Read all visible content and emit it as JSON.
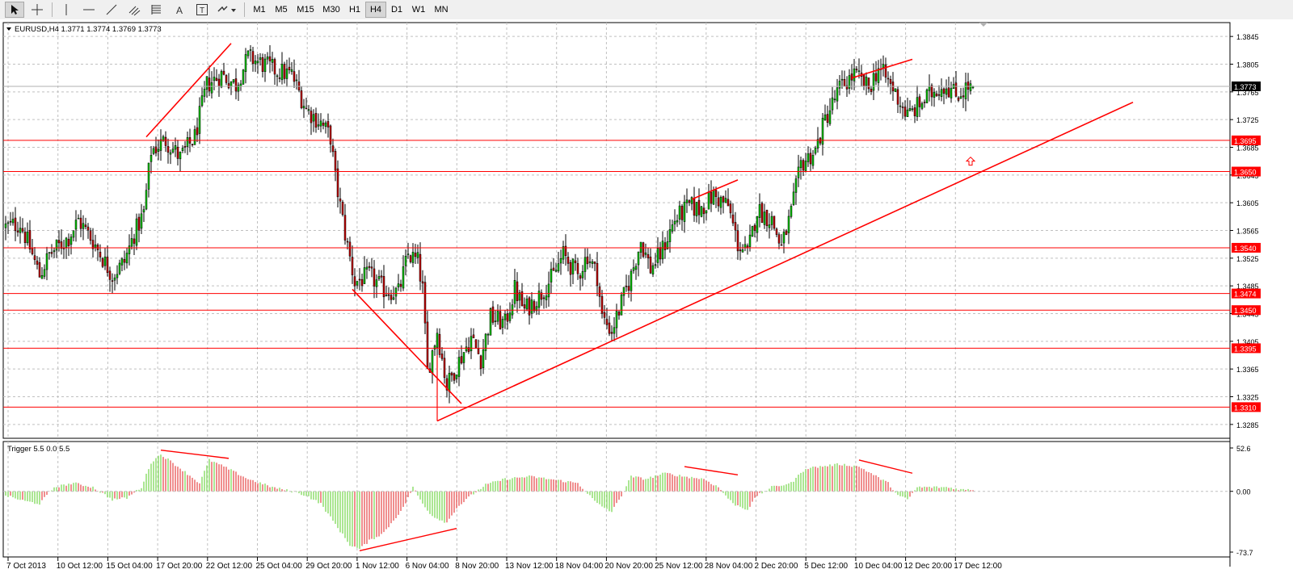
{
  "toolbar": {
    "tools": [
      {
        "name": "cursor-icon",
        "active": true
      },
      {
        "name": "crosshair-icon",
        "active": false
      },
      {
        "name": "vertical-line-icon",
        "active": false
      },
      {
        "name": "horizontal-line-icon",
        "active": false
      },
      {
        "name": "trendline-icon",
        "active": false
      },
      {
        "name": "fibonacci-channel-icon",
        "active": false
      },
      {
        "name": "fibonacci-fan-icon",
        "active": false
      },
      {
        "name": "text-icon",
        "active": false
      },
      {
        "name": "text-label-icon",
        "active": false
      },
      {
        "name": "arrows-icon",
        "active": false
      }
    ],
    "text_tool_label": "A",
    "text_label_tool_label": "T",
    "timeframes": [
      "M1",
      "M5",
      "M15",
      "M30",
      "H1",
      "H4",
      "D1",
      "W1",
      "MN"
    ],
    "active_timeframe": "H4"
  },
  "main_window": {
    "title": "EURUSD,H4  1.3771 1.3774 1.3769 1.3773"
  },
  "indicator_window": {
    "title": "Trigger 5.5 0.0 5.5"
  },
  "colors": {
    "levels": "#ff0000",
    "bull_bar": "#00c800",
    "bear_bar": "#c80000",
    "hist_pos_rising": "#7ed957",
    "hist_pos_falling": "#e85050",
    "current_price_box": "#000000",
    "grid": "#c0c0c0"
  },
  "chart_data": [
    {
      "type": "candlestick",
      "symbol": "EURUSD",
      "timeframe": "H4",
      "last_bar": {
        "open": 1.3771,
        "high": 1.3774,
        "low": 1.3769,
        "close": 1.3773
      },
      "current_price": "1.3773",
      "ylim": [
        1.3265,
        1.3865
      ],
      "y_ticks": [
        "1.3845",
        "1.3805",
        "1.3765",
        "1.3725",
        "1.3685",
        "1.3645",
        "1.3605",
        "1.3565",
        "1.3525",
        "1.3485",
        "1.3445",
        "1.3405",
        "1.3365",
        "1.3325",
        "1.3285"
      ],
      "horizontal_levels": [
        "1.3695",
        "1.3650",
        "1.3540",
        "1.3474",
        "1.3450",
        "1.3395",
        "1.3310"
      ],
      "x_ticks": [
        "7 Oct 2013",
        "10 Oct 12:00",
        "15 Oct 04:00",
        "17 Oct 20:00",
        "22 Oct 12:00",
        "25 Oct 04:00",
        "29 Oct 20:00",
        "1 Nov 12:00",
        "6 Nov 04:00",
        "8 Nov 20:00",
        "13 Nov 12:00",
        "18 Nov 04:00",
        "20 Nov 20:00",
        "25 Nov 12:00",
        "28 Nov 04:00",
        "2 Dec 20:00",
        "5 Dec 12:00",
        "10 Dec 04:00",
        "12 Dec 20:00",
        "17 Dec 12:00"
      ],
      "bar_count": 400,
      "path_points": [
        [
          0,
          1.357
        ],
        [
          6,
          1.3575
        ],
        [
          10,
          1.354
        ],
        [
          14,
          1.35
        ],
        [
          18,
          1.353
        ],
        [
          26,
          1.3555
        ],
        [
          30,
          1.358
        ],
        [
          36,
          1.355
        ],
        [
          44,
          1.35
        ],
        [
          49,
          1.352
        ],
        [
          53,
          1.356
        ],
        [
          57,
          1.359
        ],
        [
          60,
          1.368
        ],
        [
          66,
          1.3695
        ],
        [
          72,
          1.367
        ],
        [
          78,
          1.37
        ],
        [
          83,
          1.3775
        ],
        [
          89,
          1.379
        ],
        [
          95,
          1.3775
        ],
        [
          100,
          1.3815
        ],
        [
          106,
          1.3805
        ],
        [
          112,
          1.3795
        ],
        [
          118,
          1.379
        ],
        [
          124,
          1.374
        ],
        [
          130,
          1.372
        ],
        [
          134,
          1.37
        ],
        [
          136,
          1.364
        ],
        [
          140,
          1.356
        ],
        [
          144,
          1.349
        ],
        [
          150,
          1.35
        ],
        [
          156,
          1.348
        ],
        [
          162,
          1.3475
        ],
        [
          166,
          1.353
        ],
        [
          170,
          1.352
        ],
        [
          172,
          1.348
        ],
        [
          174,
          1.336
        ],
        [
          178,
          1.342
        ],
        [
          182,
          1.334
        ],
        [
          186,
          1.337
        ],
        [
          192,
          1.341
        ],
        [
          196,
          1.338
        ],
        [
          200,
          1.344
        ],
        [
          206,
          1.343
        ],
        [
          210,
          1.348
        ],
        [
          214,
          1.345
        ],
        [
          220,
          1.347
        ],
        [
          226,
          1.35
        ],
        [
          230,
          1.353
        ],
        [
          236,
          1.35
        ],
        [
          240,
          1.353
        ],
        [
          244,
          1.35
        ],
        [
          246,
          1.344
        ],
        [
          250,
          1.342
        ],
        [
          254,
          1.346
        ],
        [
          258,
          1.35
        ],
        [
          262,
          1.355
        ],
        [
          266,
          1.351
        ],
        [
          270,
          1.353
        ],
        [
          276,
          1.358
        ],
        [
          282,
          1.36
        ],
        [
          286,
          1.3595
        ],
        [
          292,
          1.3615
        ],
        [
          298,
          1.36
        ],
        [
          302,
          1.3545
        ],
        [
          306,
          1.353
        ],
        [
          310,
          1.3595
        ],
        [
          316,
          1.358
        ],
        [
          320,
          1.354
        ],
        [
          324,
          1.359
        ],
        [
          328,
          1.366
        ],
        [
          334,
          1.368
        ],
        [
          338,
          1.3725
        ],
        [
          344,
          1.377
        ],
        [
          350,
          1.379
        ],
        [
          356,
          1.377
        ],
        [
          360,
          1.38
        ],
        [
          366,
          1.377
        ],
        [
          372,
          1.373
        ],
        [
          378,
          1.375
        ],
        [
          384,
          1.377
        ],
        [
          388,
          1.3775
        ],
        [
          392,
          1.376
        ],
        [
          396,
          1.377
        ],
        [
          399,
          1.3773
        ]
      ]
    },
    {
      "type": "histogram",
      "name": "Trigger 5.5 0.0 5.5",
      "ylim": [
        -73.7,
        52.6
      ],
      "y_ticks": [
        "52.6",
        "0.00",
        "-73.7"
      ],
      "path_points": [
        [
          0,
          -5
        ],
        [
          8,
          -12
        ],
        [
          14,
          -15
        ],
        [
          20,
          5
        ],
        [
          28,
          10
        ],
        [
          36,
          5
        ],
        [
          44,
          -10
        ],
        [
          50,
          -8
        ],
        [
          56,
          5
        ],
        [
          60,
          35
        ],
        [
          64,
          45
        ],
        [
          72,
          28
        ],
        [
          80,
          10
        ],
        [
          84,
          38
        ],
        [
          90,
          30
        ],
        [
          100,
          15
        ],
        [
          110,
          5
        ],
        [
          118,
          0
        ],
        [
          124,
          -5
        ],
        [
          130,
          -15
        ],
        [
          136,
          -40
        ],
        [
          142,
          -65
        ],
        [
          146,
          -70
        ],
        [
          150,
          -60
        ],
        [
          156,
          -50
        ],
        [
          164,
          -20
        ],
        [
          168,
          5
        ],
        [
          172,
          -15
        ],
        [
          176,
          -30
        ],
        [
          182,
          -38
        ],
        [
          186,
          -20
        ],
        [
          192,
          -5
        ],
        [
          198,
          8
        ],
        [
          206,
          15
        ],
        [
          216,
          18
        ],
        [
          224,
          15
        ],
        [
          236,
          10
        ],
        [
          244,
          -15
        ],
        [
          250,
          -25
        ],
        [
          254,
          -5
        ],
        [
          258,
          18
        ],
        [
          264,
          15
        ],
        [
          272,
          22
        ],
        [
          280,
          18
        ],
        [
          288,
          15
        ],
        [
          294,
          5
        ],
        [
          300,
          -15
        ],
        [
          306,
          -22
        ],
        [
          310,
          -5
        ],
        [
          316,
          5
        ],
        [
          324,
          10
        ],
        [
          330,
          28
        ],
        [
          336,
          30
        ],
        [
          344,
          33
        ],
        [
          352,
          30
        ],
        [
          358,
          20
        ],
        [
          364,
          10
        ],
        [
          368,
          -5
        ],
        [
          372,
          -10
        ],
        [
          376,
          5
        ],
        [
          382,
          5
        ],
        [
          388,
          5
        ],
        [
          395,
          2
        ],
        [
          399,
          2
        ]
      ]
    }
  ]
}
